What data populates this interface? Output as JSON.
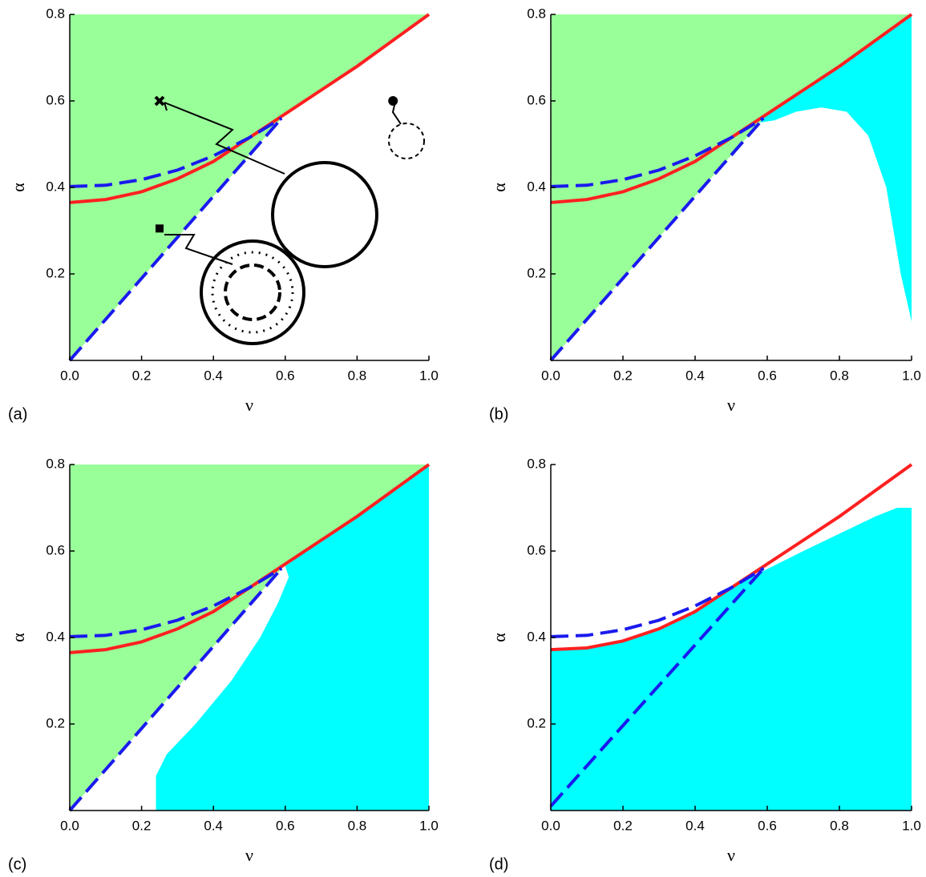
{
  "chart_data": [
    {
      "type": "line",
      "panel_label": "(a)",
      "x_label": "ν",
      "y_label": "α",
      "xlim": [
        0,
        1
      ],
      "ylim": [
        0,
        0.8
      ],
      "xticks": [
        {
          "value": 0,
          "label": "0.0"
        },
        0.2,
        0.4,
        0.6,
        0.8,
        {
          "value": 1,
          "label": "1.0"
        }
      ],
      "yticks": [
        0.2,
        0.4,
        0.6,
        0.8
      ],
      "series": [
        {
          "kind": "area",
          "color": "#99ff99",
          "x": [
            0,
            0,
            1,
            0.9,
            0.8,
            0.7,
            0.6,
            0.58,
            0
          ],
          "values": [
            0,
            0.8,
            0.8,
            0.74,
            0.68,
            0.625,
            0.57,
            0.55,
            0
          ]
        },
        {
          "kind": "line",
          "color": "#ff2020",
          "dashed": false,
          "x": [
            0,
            0.1,
            0.2,
            0.3,
            0.4,
            0.5,
            0.6,
            0.7,
            0.8,
            0.9,
            1
          ],
          "values": [
            0.365,
            0.372,
            0.39,
            0.42,
            0.46,
            0.515,
            0.57,
            0.625,
            0.68,
            0.74,
            0.8
          ]
        },
        {
          "kind": "line",
          "color": "#1a1aee",
          "dashed": true,
          "x": [
            0,
            0.1,
            0.2,
            0.3,
            0.4,
            0.5,
            0.59
          ],
          "values": [
            0.402,
            0.405,
            0.418,
            0.44,
            0.473,
            0.515,
            0.56
          ]
        },
        {
          "kind": "line",
          "color": "#1a1aee",
          "dashed": true,
          "x": [
            0,
            0.59
          ],
          "values": [
            0,
            0.56
          ]
        },
        {
          "kind": "marker",
          "marker": "cross",
          "color": "#000",
          "x": [
            0.25
          ],
          "values": [
            0.6
          ]
        },
        {
          "kind": "marker",
          "marker": "square",
          "color": "#000",
          "x": [
            0.25
          ],
          "values": [
            0.305
          ]
        },
        {
          "kind": "marker",
          "marker": "dot",
          "color": "#000",
          "x": [
            0.9
          ],
          "values": [
            0.6
          ]
        }
      ]
    },
    {
      "type": "line",
      "panel_label": "(b)",
      "x_label": "ν",
      "y_label": "α",
      "xlim": [
        0,
        1
      ],
      "ylim": [
        0,
        0.8
      ],
      "xticks": [
        {
          "value": 0,
          "label": "0.0"
        },
        0.2,
        0.4,
        0.6,
        0.8,
        {
          "value": 1,
          "label": "1.0"
        }
      ],
      "yticks": [
        0.2,
        0.4,
        0.6,
        0.8
      ],
      "series": [
        {
          "kind": "area",
          "color": "#99ff99",
          "x": [
            0,
            0,
            1,
            0.9,
            0.8,
            0.7,
            0.6,
            0.58,
            0
          ],
          "values": [
            0,
            0.8,
            0.8,
            0.74,
            0.68,
            0.625,
            0.57,
            0.55,
            0
          ]
        },
        {
          "kind": "area",
          "color": "#00ffff",
          "x": [
            0.58,
            0.6,
            0.7,
            0.8,
            0.9,
            1,
            1,
            0.97,
            0.93,
            0.88,
            0.82,
            0.75,
            0.68,
            0.62
          ],
          "values": [
            0.55,
            0.57,
            0.625,
            0.68,
            0.74,
            0.8,
            0.09,
            0.2,
            0.4,
            0.52,
            0.575,
            0.585,
            0.575,
            0.555
          ]
        },
        {
          "kind": "line",
          "color": "#ff2020",
          "dashed": false,
          "x": [
            0,
            0.1,
            0.2,
            0.3,
            0.4,
            0.5,
            0.6,
            0.7,
            0.8,
            0.9,
            1
          ],
          "values": [
            0.365,
            0.372,
            0.39,
            0.42,
            0.46,
            0.515,
            0.57,
            0.625,
            0.68,
            0.74,
            0.8
          ]
        },
        {
          "kind": "line",
          "color": "#1a1aee",
          "dashed": true,
          "x": [
            0,
            0.1,
            0.2,
            0.3,
            0.4,
            0.5,
            0.59
          ],
          "values": [
            0.402,
            0.405,
            0.418,
            0.44,
            0.473,
            0.515,
            0.56
          ]
        },
        {
          "kind": "line",
          "color": "#1a1aee",
          "dashed": true,
          "x": [
            0,
            0.59
          ],
          "values": [
            0,
            0.56
          ]
        }
      ]
    },
    {
      "type": "line",
      "panel_label": "(c)",
      "x_label": "ν",
      "y_label": "α",
      "xlim": [
        0,
        1
      ],
      "ylim": [
        0,
        0.8
      ],
      "xticks": [
        {
          "value": 0,
          "label": "0.0"
        },
        0.2,
        0.4,
        0.6,
        0.8,
        {
          "value": 1,
          "label": "1.0"
        }
      ],
      "yticks": [
        0.2,
        0.4,
        0.6,
        0.8
      ],
      "series": [
        {
          "kind": "area",
          "color": "#99ff99",
          "x": [
            0,
            0,
            1,
            0.9,
            0.8,
            0.7,
            0.6,
            0.58,
            0
          ],
          "values": [
            0,
            0.8,
            0.8,
            0.74,
            0.68,
            0.625,
            0.57,
            0.55,
            0
          ]
        },
        {
          "kind": "area",
          "color": "#00ffff",
          "x": [
            0.24,
            0.24,
            0.27,
            0.35,
            0.45,
            0.53,
            0.58,
            0.61,
            0.6,
            0.7,
            0.8,
            0.9,
            1,
            1
          ],
          "values": [
            0,
            0.08,
            0.13,
            0.2,
            0.3,
            0.4,
            0.48,
            0.54,
            0.565,
            0.625,
            0.68,
            0.74,
            0.8,
            0
          ]
        },
        {
          "kind": "line",
          "color": "#ff2020",
          "dashed": false,
          "x": [
            0,
            0.1,
            0.2,
            0.3,
            0.4,
            0.5,
            0.6,
            0.7,
            0.8,
            0.9,
            1
          ],
          "values": [
            0.365,
            0.372,
            0.39,
            0.42,
            0.46,
            0.515,
            0.57,
            0.625,
            0.68,
            0.74,
            0.8
          ]
        },
        {
          "kind": "line",
          "color": "#1a1aee",
          "dashed": true,
          "x": [
            0,
            0.1,
            0.2,
            0.3,
            0.4,
            0.5,
            0.59
          ],
          "values": [
            0.402,
            0.405,
            0.418,
            0.44,
            0.473,
            0.515,
            0.56
          ]
        },
        {
          "kind": "line",
          "color": "#1a1aee",
          "dashed": true,
          "x": [
            0,
            0.59
          ],
          "values": [
            0,
            0.56
          ]
        }
      ]
    },
    {
      "type": "line",
      "panel_label": "(d)",
      "x_label": "ν",
      "y_label": "α",
      "xlim": [
        0,
        1
      ],
      "ylim": [
        0,
        0.8
      ],
      "xticks": [
        {
          "value": 0,
          "label": "0.0"
        },
        0.2,
        0.4,
        0.6,
        0.8,
        {
          "value": 1,
          "label": "1.0"
        }
      ],
      "yticks": [
        0.2,
        0.4,
        0.6,
        0.8
      ],
      "series": [
        {
          "kind": "area",
          "color": "#00ffff",
          "x": [
            0,
            0,
            0.1,
            0.2,
            0.3,
            0.4,
            0.5,
            0.58,
            0.7,
            0.8,
            0.9,
            0.96,
            1,
            1
          ],
          "values": [
            0,
            0.372,
            0.376,
            0.392,
            0.42,
            0.46,
            0.515,
            0.55,
            0.6,
            0.64,
            0.68,
            0.7,
            0.7,
            0
          ]
        },
        {
          "kind": "line",
          "color": "#ff2020",
          "dashed": false,
          "x": [
            0,
            0.1,
            0.2,
            0.3,
            0.4,
            0.5,
            0.6,
            0.7,
            0.8,
            0.9,
            1
          ],
          "values": [
            0.372,
            0.376,
            0.392,
            0.42,
            0.46,
            0.515,
            0.57,
            0.625,
            0.68,
            0.74,
            0.8
          ]
        },
        {
          "kind": "line",
          "color": "#1a1aee",
          "dashed": true,
          "x": [
            0,
            0.1,
            0.2,
            0.3,
            0.4,
            0.5,
            0.59
          ],
          "values": [
            0.402,
            0.405,
            0.418,
            0.44,
            0.473,
            0.515,
            0.56
          ]
        },
        {
          "kind": "line",
          "color": "#1a1aee",
          "dashed": true,
          "x": [
            0,
            0.59
          ],
          "values": [
            0.01,
            0.56
          ]
        }
      ]
    }
  ]
}
